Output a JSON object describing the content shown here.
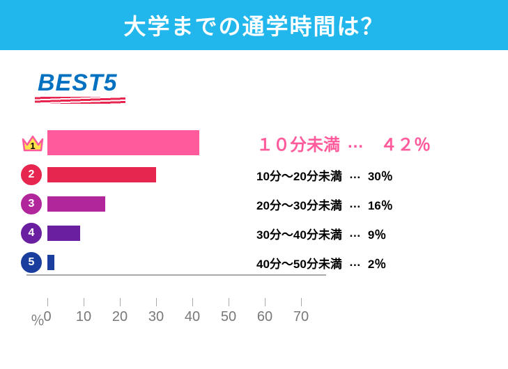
{
  "title": "大学までの通学時間は？",
  "title_bg": "#22b7ec",
  "best5_label": "BEST5",
  "best5_color": "#0070c0",
  "best5_underline_color": "#e6264f",
  "chart": {
    "type": "bar",
    "xlim": [
      0,
      70
    ],
    "xtick_step": 10,
    "xticks": [
      0,
      10,
      20,
      30,
      40,
      50,
      60,
      70
    ],
    "tick_pixels_per_unit": 5.2,
    "axis_color": "#a9a9a9",
    "axis_label_color": "#787878",
    "pct_symbol": "％",
    "rows": [
      {
        "rank": 1,
        "label": "１０分未満",
        "pct_text": "４２％",
        "value": 42,
        "bar_color": "#ff5a9b",
        "label_color": "#ff5a9b",
        "dots": "…"
      },
      {
        "rank": 2,
        "label": "10分～20分未満",
        "pct_text": "30％",
        "value": 30,
        "bar_color": "#e6264f",
        "badge_color": "#e6264f",
        "dots": "…"
      },
      {
        "rank": 3,
        "label": "20分～30分未満",
        "pct_text": "16％",
        "value": 16,
        "bar_color": "#b1279b",
        "badge_color": "#b1279b",
        "dots": "…"
      },
      {
        "rank": 4,
        "label": "30分～40分未満",
        "pct_text": "9％",
        "value": 9,
        "bar_color": "#6a1fa0",
        "badge_color": "#6a1fa0",
        "dots": "…"
      },
      {
        "rank": 5,
        "label": "40分～50分未満",
        "pct_text": "2％",
        "value": 2,
        "bar_color": "#1a3e9e",
        "badge_color": "#1a3e9e",
        "dots": "…"
      }
    ],
    "crown": {
      "fill": "#ffe34d",
      "stroke": "#ff5a9b",
      "text": "1",
      "text_color": "#000000"
    }
  }
}
